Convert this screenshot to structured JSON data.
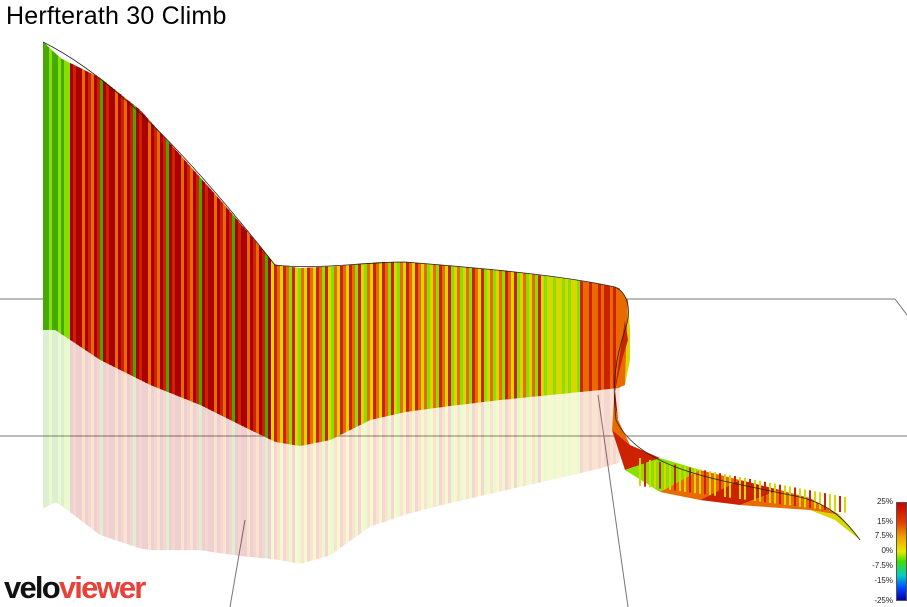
{
  "title": "Herfterath 30 Climb",
  "logo": {
    "part1": "velo",
    "part2": "viewer"
  },
  "legend": {
    "labels": [
      "25%",
      "15%",
      "7.5%",
      "0%",
      "-7.5%",
      "-15%",
      "-25%"
    ],
    "colors": [
      "#cc0000",
      "#e02000",
      "#f08000",
      "#e8e800",
      "#44dd00",
      "#00cccc",
      "#0044ff",
      "#0000aa"
    ]
  },
  "gradient_colors": {
    "steep": "#aa0000",
    "hard": "#cc2200",
    "moderate": "#e86a00",
    "mild": "#d8d800",
    "flat": "#88e000",
    "easy": "#44aa00"
  }
}
